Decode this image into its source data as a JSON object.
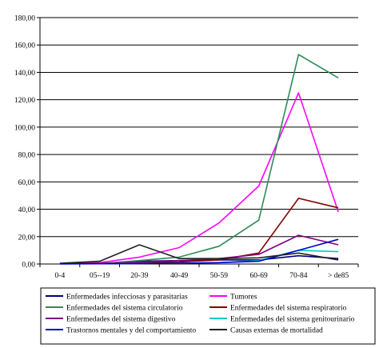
{
  "chart_data": {
    "type": "line",
    "title": "",
    "xlabel": "",
    "ylabel": "",
    "ylim": [
      0,
      180
    ],
    "yticks": [
      "0,00",
      "20,00",
      "40,00",
      "60,00",
      "80,00",
      "100,00",
      "120,00",
      "140,00",
      "160,00",
      "180,00"
    ],
    "yticks_values": [
      0,
      20,
      40,
      60,
      80,
      100,
      120,
      140,
      160,
      180
    ],
    "categories": [
      "0-4",
      "05--19",
      "20-39",
      "40-49",
      "50-59",
      "60-69",
      "70-84",
      "> de85"
    ],
    "grid": "horizontal",
    "legend_position": "bottom",
    "series": [
      {
        "name": "Enfermedades infecciosas y parasitarias",
        "color": "#000080",
        "values": [
          0.2,
          0.3,
          2,
          2.5,
          3,
          3,
          6,
          4
        ]
      },
      {
        "name": "Tumores",
        "color": "#ff00ff",
        "values": [
          0.3,
          1,
          5,
          12,
          30,
          57,
          125,
          38
        ]
      },
      {
        "name": "Enfermedades del sistema circulatorio",
        "color": "#2e8b57",
        "values": [
          0.2,
          0.3,
          2.5,
          5,
          13,
          32,
          153,
          136
        ]
      },
      {
        "name": "Enfermedades del sistema respiratorio",
        "color": "#800000",
        "values": [
          0.3,
          0.5,
          1,
          1.5,
          3,
          8,
          48,
          41
        ]
      },
      {
        "name": "Enfermedades del sistema digestivo",
        "color": "#800080",
        "values": [
          0.1,
          0.3,
          1.5,
          2.5,
          4,
          7,
          21,
          14
        ]
      },
      {
        "name": "Enfermedades del sistema genitourinario",
        "color": "#00cccc",
        "values": [
          0.1,
          0.2,
          0.4,
          0.6,
          1,
          2.5,
          10,
          9
        ]
      },
      {
        "name": "Trastornos mentales y del comportamiento",
        "color": "#0000cc",
        "values": [
          0.1,
          0.2,
          0.3,
          0.5,
          1,
          2,
          10,
          18
        ]
      },
      {
        "name": "Causas externas de mortalidad",
        "color": "#222222",
        "values": [
          0.5,
          2,
          14,
          4,
          4,
          4.5,
          8,
          3
        ]
      }
    ]
  }
}
